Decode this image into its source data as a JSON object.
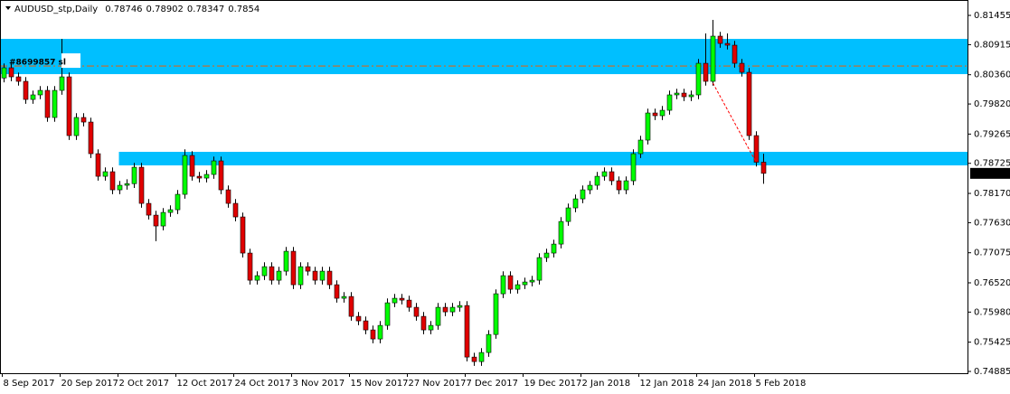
{
  "chart_data": {
    "type": "candlestick",
    "title": "AUDUSD_stp,Daily",
    "categories": [
      "8 Sep 2017",
      null,
      null,
      null,
      null,
      null,
      null,
      null,
      "20 Sep 2017",
      null,
      null,
      null,
      null,
      null,
      null,
      null,
      "2 Oct 2017",
      null,
      null,
      null,
      null,
      null,
      null,
      null,
      "12 Oct 2017",
      null,
      null,
      null,
      null,
      null,
      null,
      null,
      "24 Oct 2017",
      null,
      null,
      null,
      null,
      null,
      null,
      null,
      "3 Nov 2017",
      null,
      null,
      null,
      null,
      null,
      null,
      null,
      "15 Nov 2017",
      null,
      null,
      null,
      null,
      null,
      null,
      null,
      "27 Nov 2017",
      null,
      null,
      null,
      null,
      null,
      null,
      null,
      "7 Dec 2017",
      null,
      null,
      null,
      null,
      null,
      null,
      null,
      "19 Dec 2017",
      null,
      null,
      null,
      null,
      null,
      null,
      null,
      "2 Jan 2018",
      null,
      null,
      null,
      null,
      null,
      null,
      null,
      "12 Jan 2018",
      null,
      null,
      null,
      null,
      null,
      null,
      null,
      "24 Jan 2018",
      null,
      null,
      null,
      null,
      null,
      null,
      null,
      "5 Feb 2018",
      null
    ],
    "open": [
      0.803,
      0.80488,
      0.80321,
      0.80238,
      0.79904,
      0.79988,
      0.80071,
      0.79571,
      0.80071,
      0.80321,
      0.79237,
      0.79571,
      0.79487,
      0.78903,
      0.78486,
      0.7857,
      0.78236,
      0.7832,
      0.7835,
      0.78653,
      0.77986,
      0.77769,
      0.77569,
      0.77819,
      0.77869,
      0.78153,
      0.7887,
      0.78486,
      0.78453,
      0.7852,
      0.7877,
      0.78236,
      0.77986,
      0.77736,
      0.77069,
      0.76568,
      0.76652,
      0.76818,
      0.76568,
      0.76735,
      0.77102,
      0.76485,
      0.76818,
      0.76735,
      0.76568,
      0.76735,
      0.76485,
      0.76235,
      0.76268,
      0.75901,
      0.75818,
      0.75651,
      0.75484,
      0.75734,
      0.76151,
      0.76235,
      0.76201,
      0.76068,
      0.75901,
      0.75651,
      0.75734,
      0.76068,
      0.75984,
      0.76068,
      0.76101,
      0.7515,
      0.75067,
      0.75234,
      0.75567,
      0.76318,
      0.76652,
      0.76401,
      0.76485,
      0.76535,
      0.76568,
      0.76985,
      0.77069,
      0.77235,
      0.77652,
      0.77903,
      0.78069,
      0.78236,
      0.7832,
      0.78486,
      0.7857,
      0.78403,
      0.78236,
      0.78403,
      0.78903,
      0.79154,
      0.79654,
      0.79604,
      0.79704,
      0.79988,
      0.80021,
      0.79954,
      0.79988,
      0.80571,
      0.80238,
      0.81072,
      0.80938,
      0.80905,
      0.80571,
      0.80405,
      0.79237,
      0.78746
    ],
    "high": [
      0.80568,
      0.80568,
      0.80401,
      0.80318,
      0.80068,
      0.80151,
      0.80151,
      0.80151,
      0.81022,
      0.80401,
      0.79651,
      0.79651,
      0.79567,
      0.78983,
      0.7865,
      0.7865,
      0.784,
      0.7843,
      0.78733,
      0.78733,
      0.78066,
      0.77849,
      0.77899,
      0.77949,
      0.78233,
      0.78983,
      0.7895,
      0.78566,
      0.786,
      0.7885,
      0.7885,
      0.78316,
      0.78066,
      0.77816,
      0.77149,
      0.76732,
      0.76898,
      0.76898,
      0.76815,
      0.77182,
      0.77182,
      0.76898,
      0.76898,
      0.76815,
      0.76815,
      0.76815,
      0.76565,
      0.76348,
      0.76348,
      0.75981,
      0.75898,
      0.75731,
      0.75814,
      0.76231,
      0.76315,
      0.76315,
      0.76281,
      0.76148,
      0.75981,
      0.75814,
      0.76148,
      0.76148,
      0.76148,
      0.76181,
      0.76181,
      0.7523,
      0.75314,
      0.75647,
      0.76398,
      0.76732,
      0.76732,
      0.76565,
      0.76615,
      0.76648,
      0.77065,
      0.77149,
      0.77315,
      0.77732,
      0.77983,
      0.78149,
      0.78316,
      0.784,
      0.78566,
      0.7865,
      0.7865,
      0.78483,
      0.78483,
      0.78983,
      0.79234,
      0.79734,
      0.79734,
      0.79784,
      0.80068,
      0.80101,
      0.80101,
      0.80068,
      0.80651,
      0.81122,
      0.81372,
      0.81152,
      0.81122,
      0.80985,
      0.80651,
      0.80485,
      0.79317,
      0.78902
    ],
    "low": [
      0.8022,
      0.80241,
      0.80158,
      0.79824,
      0.79824,
      0.79908,
      0.79491,
      0.79491,
      0.79991,
      0.79157,
      0.79157,
      0.79407,
      0.78823,
      0.78406,
      0.78406,
      0.78156,
      0.78156,
      0.7824,
      0.7827,
      0.77906,
      0.77689,
      0.77289,
      0.77489,
      0.77739,
      0.77789,
      0.78073,
      0.78406,
      0.78373,
      0.78373,
      0.7844,
      0.78156,
      0.77906,
      0.77656,
      0.76989,
      0.76488,
      0.76488,
      0.76572,
      0.76488,
      0.76488,
      0.76655,
      0.76405,
      0.76405,
      0.76655,
      0.76488,
      0.76488,
      0.76405,
      0.76155,
      0.76155,
      0.75821,
      0.75738,
      0.75571,
      0.75404,
      0.75404,
      0.75654,
      0.76071,
      0.76121,
      0.75988,
      0.75821,
      0.75571,
      0.75571,
      0.75654,
      0.75904,
      0.75904,
      0.75988,
      0.7507,
      0.74987,
      0.74987,
      0.75154,
      0.75487,
      0.76238,
      0.76321,
      0.76321,
      0.76405,
      0.76455,
      0.76488,
      0.76905,
      0.76989,
      0.77155,
      0.77572,
      0.77823,
      0.77989,
      0.78156,
      0.7824,
      0.78406,
      0.78323,
      0.78156,
      0.78156,
      0.78323,
      0.78823,
      0.79074,
      0.79524,
      0.79524,
      0.79624,
      0.79908,
      0.79874,
      0.79874,
      0.79908,
      0.80158,
      0.80158,
      0.80858,
      0.80825,
      0.80491,
      0.80325,
      0.79157,
      0.78666,
      0.78347
    ],
    "close": [
      0.80488,
      0.80321,
      0.80238,
      0.79904,
      0.79988,
      0.80071,
      0.79571,
      0.80071,
      0.80321,
      0.79237,
      0.79571,
      0.79487,
      0.78903,
      0.78486,
      0.7857,
      0.78236,
      0.7832,
      0.7835,
      0.78653,
      0.77986,
      0.77769,
      0.77569,
      0.77819,
      0.77869,
      0.78153,
      0.7887,
      0.78486,
      0.78453,
      0.7852,
      0.7877,
      0.78236,
      0.77986,
      0.77736,
      0.77069,
      0.76568,
      0.76652,
      0.76818,
      0.76568,
      0.76735,
      0.77102,
      0.76485,
      0.76818,
      0.76735,
      0.76568,
      0.76735,
      0.76485,
      0.76235,
      0.76268,
      0.75901,
      0.75818,
      0.75651,
      0.75484,
      0.75734,
      0.76151,
      0.76235,
      0.76201,
      0.76068,
      0.75901,
      0.75651,
      0.75734,
      0.76068,
      0.75984,
      0.76068,
      0.76101,
      0.7515,
      0.75067,
      0.75234,
      0.75567,
      0.76318,
      0.76652,
      0.76401,
      0.76485,
      0.76535,
      0.76568,
      0.76985,
      0.77069,
      0.77235,
      0.77652,
      0.77903,
      0.78069,
      0.78236,
      0.7832,
      0.78486,
      0.7857,
      0.78403,
      0.78236,
      0.78403,
      0.78903,
      0.79154,
      0.79654,
      0.79604,
      0.79704,
      0.79988,
      0.80021,
      0.79954,
      0.79988,
      0.80571,
      0.80238,
      0.81072,
      0.80938,
      0.80905,
      0.80571,
      0.80405,
      0.79237,
      0.78746,
      0.7854
    ],
    "bull_color": "#00ff00",
    "bear_color": "#e00000",
    "ylim": [
      0.74852,
      0.81739
    ],
    "yticks": [
      0.81455,
      0.80915,
      {
        "value": 0.8036,
        "label": "0.80360"
      },
      {
        "value": 0.7982,
        "label": "0.79820"
      },
      0.79265,
      0.78725,
      {
        "value": 0.7817,
        "label": "0.78170"
      },
      {
        "value": 0.7763,
        "label": "0.77630"
      },
      0.77075,
      {
        "value": 0.7652,
        "label": "0.76520"
      },
      {
        "value": 0.7598,
        "label": "0.75980"
      },
      0.75425,
      0.74885
    ],
    "zones": [
      {
        "top": 0.81022,
        "bottom": 0.80371,
        "color": "#00bfff"
      },
      {
        "top": 0.78937,
        "bottom": 0.78687,
        "color": "#00bfff"
      }
    ],
    "order_line": {
      "label": "#8699857 sl",
      "value": 0.80521,
      "color": "#d2691e"
    },
    "trendline": {
      "values": [
        0.80204,
        0.78737
      ],
      "color": "#ff0000"
    }
  }
}
